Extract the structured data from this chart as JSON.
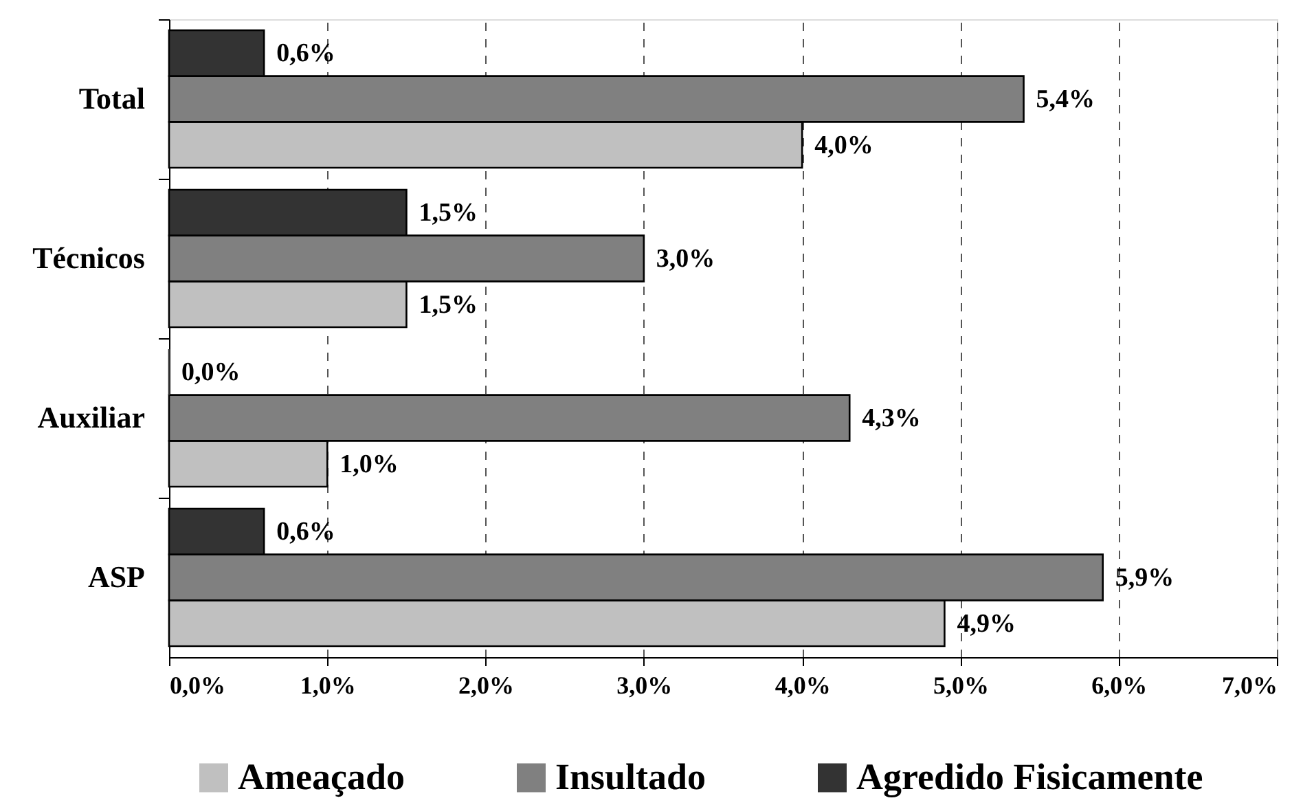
{
  "chart_data": {
    "type": "bar",
    "orientation": "horizontal",
    "categories": [
      "Total",
      "Técnicos",
      "Auxiliar",
      "ASP"
    ],
    "series": [
      {
        "name": "Ameaçado",
        "color": "#c0c0c0",
        "values": [
          4.0,
          1.5,
          1.0,
          4.9
        ],
        "value_labels": [
          "4,0%",
          "1,5%",
          "1,0%",
          "4,9%"
        ]
      },
      {
        "name": "Insultado",
        "color": "#808080",
        "values": [
          5.4,
          3.0,
          4.3,
          5.9
        ],
        "value_labels": [
          "5,4%",
          "3,0%",
          "4,3%",
          "5,9%"
        ]
      },
      {
        "name": "Agredido Fisicamente",
        "color": "#333333",
        "values": [
          0.6,
          1.5,
          0.0,
          0.6
        ],
        "value_labels": [
          "0,6%",
          "1,5%",
          "0,0%",
          "0,6%"
        ]
      }
    ],
    "xlim": [
      0,
      7
    ],
    "xticks": [
      {
        "value": 0,
        "label": "0,0%"
      },
      {
        "value": 1,
        "label": "1,0%"
      },
      {
        "value": 2,
        "label": "2,0%"
      },
      {
        "value": 3,
        "label": "3,0%"
      },
      {
        "value": 4,
        "label": "4,0%"
      },
      {
        "value": 5,
        "label": "5,0%"
      },
      {
        "value": 6,
        "label": "6,0%"
      },
      {
        "value": 7,
        "label": "7,0%"
      }
    ],
    "grid": "x",
    "legend": "bottom"
  }
}
